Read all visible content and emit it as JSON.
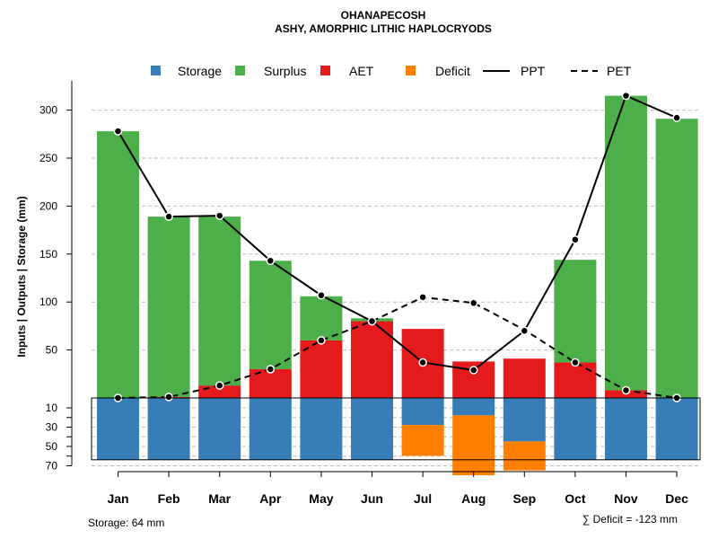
{
  "chart_data": {
    "type": "bar",
    "title": "OHANAPECOSH",
    "subtitle": "ASHY, AMORPHIC LITHIC HAPLOCRYODS",
    "ylabel": "Inputs | Outputs | Storage     (mm)",
    "categories": [
      "Jan",
      "Feb",
      "Mar",
      "Apr",
      "May",
      "Jun",
      "Jul",
      "Aug",
      "Sep",
      "Oct",
      "Nov",
      "Dec"
    ],
    "ylim_upper": [
      0,
      330
    ],
    "ylim_lower": [
      0,
      70
    ],
    "yticks_upper": [
      50,
      100,
      150,
      200,
      250,
      300
    ],
    "yticks_lower": [
      10,
      30,
      50,
      70
    ],
    "legend": [
      {
        "label": "Storage",
        "kind": "box",
        "color": "#377EB8"
      },
      {
        "label": "Surplus",
        "kind": "box",
        "color": "#4DAF4A"
      },
      {
        "label": "AET",
        "kind": "box",
        "color": "#E41A1C"
      },
      {
        "label": "Deficit",
        "kind": "box",
        "color": "#FF7F00"
      },
      {
        "label": "PPT",
        "kind": "solid-line",
        "color": "#000000"
      },
      {
        "label": "PET",
        "kind": "dashed-line",
        "color": "#000000"
      }
    ],
    "colors": {
      "storage": "#377EB8",
      "surplus": "#4DAF4A",
      "aet": "#E41A1C",
      "deficit": "#FF7F00"
    },
    "series": [
      {
        "name": "AET",
        "values": [
          0,
          1,
          13,
          30,
          60,
          80,
          72,
          38,
          41,
          37,
          8,
          0
        ]
      },
      {
        "name": "Surplus",
        "values": [
          278,
          188,
          176,
          113,
          46,
          3,
          0,
          0,
          0,
          107,
          307,
          291
        ]
      },
      {
        "name": "Storage",
        "values": [
          64,
          64,
          64,
          64,
          64,
          64,
          28,
          18,
          45,
          64,
          64,
          64
        ]
      },
      {
        "name": "Deficit",
        "values": [
          0,
          0,
          0,
          0,
          0,
          0,
          32,
          62,
          30,
          0,
          0,
          0
        ]
      },
      {
        "name": "PPT",
        "values": [
          278,
          189,
          190,
          143,
          107,
          80,
          37,
          29,
          70,
          165,
          315,
          292
        ]
      },
      {
        "name": "PET",
        "values": [
          0,
          1,
          13,
          30,
          60,
          80,
          105,
          99,
          71,
          37,
          8,
          0
        ]
      }
    ],
    "footer_left": "Storage: 64 mm",
    "footer_right": "∑ Deficit = -123 mm"
  }
}
